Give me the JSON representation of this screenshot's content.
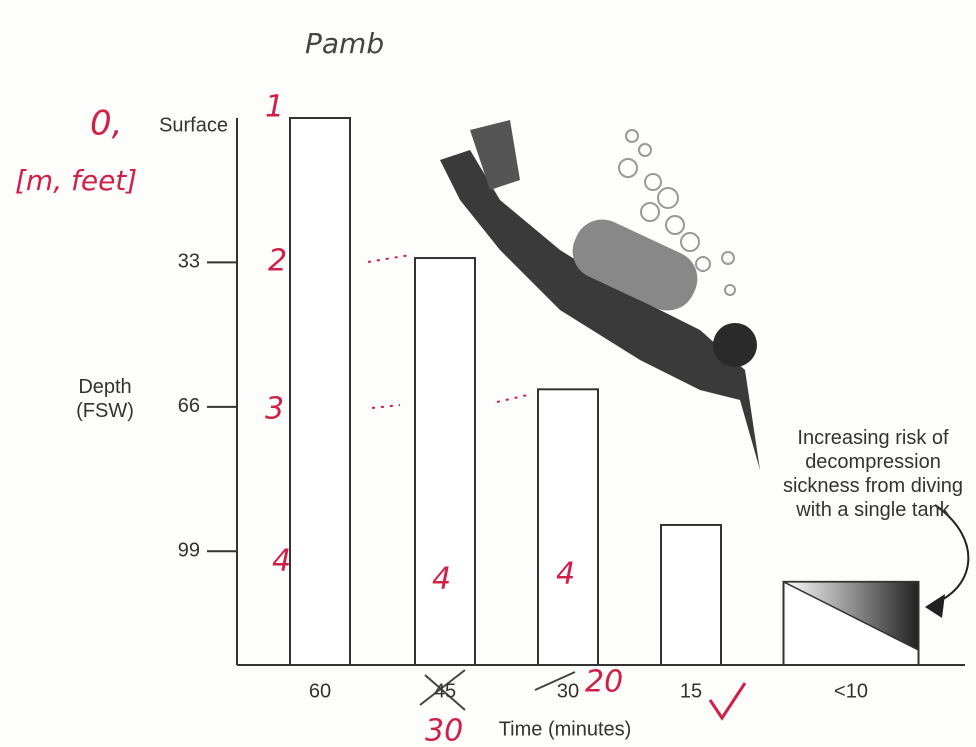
{
  "chart_data": {
    "type": "bar",
    "y_label": "Depth (FSW)",
    "x_label": "Time (minutes)",
    "categories": [
      "60",
      "45",
      "30",
      "15",
      "<10"
    ],
    "values": [
      0,
      32,
      62,
      93,
      106
    ],
    "color": "#ffffff",
    "ylim": [
      125,
      0
    ],
    "yticks": [
      {
        "value": 0,
        "label": "Surface"
      },
      33,
      66,
      99
    ],
    "annotation": "Increasing risk of decompression sickness from diving with a single tank",
    "handwritten_notes": [
      "Pamb",
      "0,",
      "[m, feet]",
      "1",
      "2",
      "3",
      "4",
      "4",
      "4",
      "20",
      "30"
    ]
  }
}
